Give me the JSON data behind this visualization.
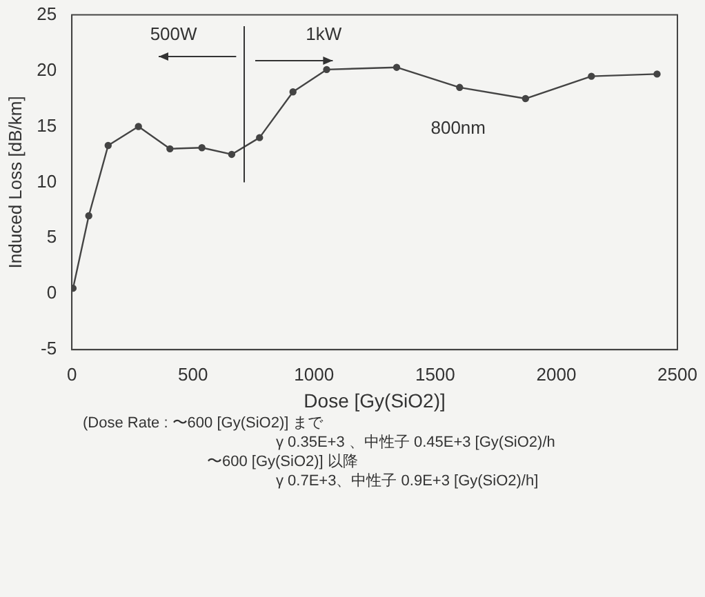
{
  "chart_data": {
    "type": "line",
    "xlabel": "Dose [Gy(SiO2)]",
    "ylabel": "Induced Loss [dB/km]",
    "x": [
      5,
      70,
      150,
      275,
      405,
      537,
      660,
      775,
      913,
      1052,
      1341,
      1601,
      1873,
      2145,
      2416
    ],
    "values": [
      0.5,
      7,
      13.3,
      15,
      13,
      13.1,
      12.5,
      14,
      18.1,
      20.1,
      20.3,
      18.5,
      17.5,
      19.5,
      19.7
    ],
    "color": "#444444",
    "marker": "circle",
    "line_style": "solid",
    "xlim": [
      0,
      2500
    ],
    "xticks": [
      0,
      500,
      1000,
      1500,
      2000,
      2500
    ],
    "ylim": [
      -5,
      25
    ],
    "yticks": [
      -5,
      0,
      5,
      10,
      15,
      20,
      25
    ],
    "grid": false,
    "legend": false,
    "annotations": [
      "500W",
      "1kW",
      "800nm",
      "(Dose Rate : 〜600 [Gy(SiO2)] まで",
      "γ 0.35E+3 、中性子 0.45E+3 [Gy(SiO2)/h",
      "〜600 [Gy(SiO2)] 以降",
      "γ 0.7E+3、中性子 0.9E+3 [Gy(SiO2)/h]"
    ]
  }
}
